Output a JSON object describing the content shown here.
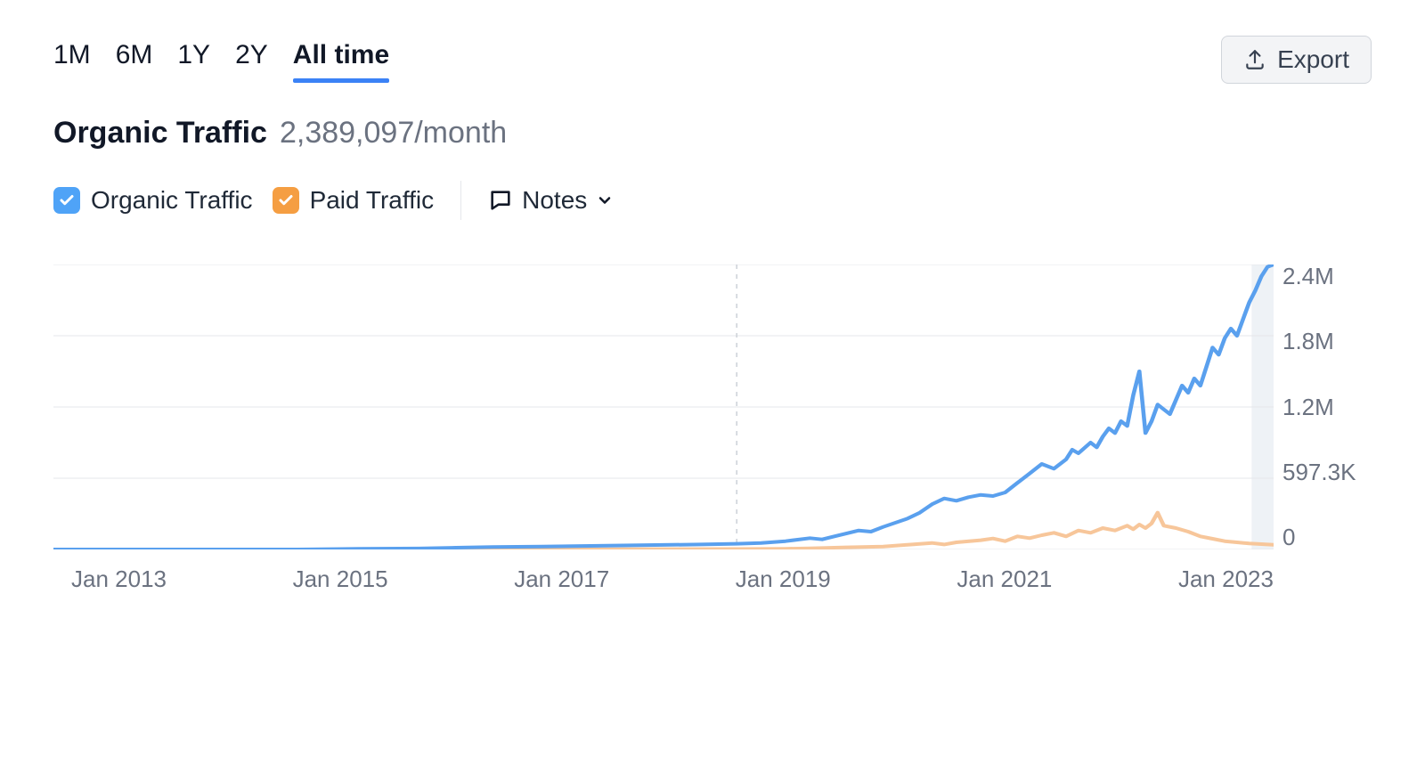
{
  "time_tabs": {
    "items": [
      "1M",
      "6M",
      "1Y",
      "2Y",
      "All time"
    ],
    "active_index": 4
  },
  "export": {
    "label": "Export"
  },
  "header": {
    "title": "Organic Traffic",
    "value": "2,389,097/month"
  },
  "legend": {
    "organic": {
      "label": "Organic Traffic",
      "checked": true,
      "color": "#4fa3f7"
    },
    "paid": {
      "label": "Paid Traffic",
      "checked": true,
      "color": "#f59e42"
    },
    "notes": {
      "label": "Notes"
    }
  },
  "chart": {
    "type": "line",
    "background_color": "#ffffff",
    "grid_color": "#e5e7eb",
    "vertical_marker_color": "#d1d5db",
    "vertical_marker_x": 0.56,
    "right_shade_color": "#eef2f6",
    "right_shade_x0": 0.982,
    "line_width": 4,
    "x_axis": {
      "labels": [
        "Jan 2013",
        "Jan 2015",
        "Jan 2017",
        "Jan 2019",
        "Jan 2021",
        "Jan 2023"
      ]
    },
    "y_axis": {
      "labels": [
        "2.4M",
        "1.8M",
        "1.2M",
        "597.3K",
        "0"
      ],
      "min": 0,
      "max": 2400000
    },
    "series": {
      "organic": {
        "color": "#5aa0ee",
        "points": [
          [
            0.0,
            0
          ],
          [
            0.05,
            0
          ],
          [
            0.1,
            0
          ],
          [
            0.15,
            0
          ],
          [
            0.2,
            0
          ],
          [
            0.25,
            5000
          ],
          [
            0.3,
            8000
          ],
          [
            0.33,
            15000
          ],
          [
            0.36,
            20000
          ],
          [
            0.4,
            25000
          ],
          [
            0.44,
            30000
          ],
          [
            0.48,
            35000
          ],
          [
            0.5,
            38000
          ],
          [
            0.53,
            42000
          ],
          [
            0.56,
            48000
          ],
          [
            0.58,
            55000
          ],
          [
            0.6,
            70000
          ],
          [
            0.62,
            95000
          ],
          [
            0.63,
            85000
          ],
          [
            0.64,
            110000
          ],
          [
            0.66,
            160000
          ],
          [
            0.67,
            150000
          ],
          [
            0.68,
            190000
          ],
          [
            0.7,
            260000
          ],
          [
            0.71,
            310000
          ],
          [
            0.72,
            380000
          ],
          [
            0.73,
            430000
          ],
          [
            0.74,
            410000
          ],
          [
            0.75,
            440000
          ],
          [
            0.76,
            460000
          ],
          [
            0.77,
            450000
          ],
          [
            0.78,
            480000
          ],
          [
            0.79,
            560000
          ],
          [
            0.8,
            640000
          ],
          [
            0.81,
            720000
          ],
          [
            0.82,
            680000
          ],
          [
            0.83,
            760000
          ],
          [
            0.835,
            840000
          ],
          [
            0.84,
            810000
          ],
          [
            0.85,
            900000
          ],
          [
            0.855,
            860000
          ],
          [
            0.86,
            950000
          ],
          [
            0.865,
            1020000
          ],
          [
            0.87,
            980000
          ],
          [
            0.875,
            1080000
          ],
          [
            0.88,
            1040000
          ],
          [
            0.885,
            1300000
          ],
          [
            0.89,
            1500000
          ],
          [
            0.895,
            980000
          ],
          [
            0.9,
            1080000
          ],
          [
            0.905,
            1220000
          ],
          [
            0.91,
            1180000
          ],
          [
            0.915,
            1140000
          ],
          [
            0.92,
            1260000
          ],
          [
            0.925,
            1380000
          ],
          [
            0.93,
            1320000
          ],
          [
            0.935,
            1440000
          ],
          [
            0.94,
            1380000
          ],
          [
            0.945,
            1540000
          ],
          [
            0.95,
            1700000
          ],
          [
            0.955,
            1640000
          ],
          [
            0.96,
            1780000
          ],
          [
            0.965,
            1860000
          ],
          [
            0.97,
            1800000
          ],
          [
            0.975,
            1940000
          ],
          [
            0.98,
            2080000
          ],
          [
            0.985,
            2180000
          ],
          [
            0.99,
            2300000
          ],
          [
            0.995,
            2380000
          ],
          [
            1.0,
            2400000
          ]
        ]
      },
      "paid": {
        "color": "#f7c69a",
        "points": [
          [
            0.0,
            0
          ],
          [
            0.1,
            0
          ],
          [
            0.2,
            0
          ],
          [
            0.3,
            0
          ],
          [
            0.4,
            0
          ],
          [
            0.5,
            3000
          ],
          [
            0.56,
            4000
          ],
          [
            0.6,
            6000
          ],
          [
            0.62,
            10000
          ],
          [
            0.65,
            18000
          ],
          [
            0.68,
            25000
          ],
          [
            0.7,
            40000
          ],
          [
            0.72,
            55000
          ],
          [
            0.73,
            42000
          ],
          [
            0.74,
            60000
          ],
          [
            0.76,
            78000
          ],
          [
            0.77,
            92000
          ],
          [
            0.78,
            70000
          ],
          [
            0.79,
            110000
          ],
          [
            0.8,
            95000
          ],
          [
            0.81,
            120000
          ],
          [
            0.82,
            140000
          ],
          [
            0.83,
            110000
          ],
          [
            0.84,
            160000
          ],
          [
            0.85,
            140000
          ],
          [
            0.86,
            180000
          ],
          [
            0.87,
            160000
          ],
          [
            0.88,
            200000
          ],
          [
            0.885,
            170000
          ],
          [
            0.89,
            210000
          ],
          [
            0.895,
            180000
          ],
          [
            0.9,
            220000
          ],
          [
            0.905,
            310000
          ],
          [
            0.91,
            200000
          ],
          [
            0.92,
            180000
          ],
          [
            0.93,
            150000
          ],
          [
            0.94,
            110000
          ],
          [
            0.95,
            90000
          ],
          [
            0.96,
            70000
          ],
          [
            0.97,
            60000
          ],
          [
            0.98,
            50000
          ],
          [
            0.99,
            45000
          ],
          [
            1.0,
            40000
          ]
        ]
      }
    }
  }
}
